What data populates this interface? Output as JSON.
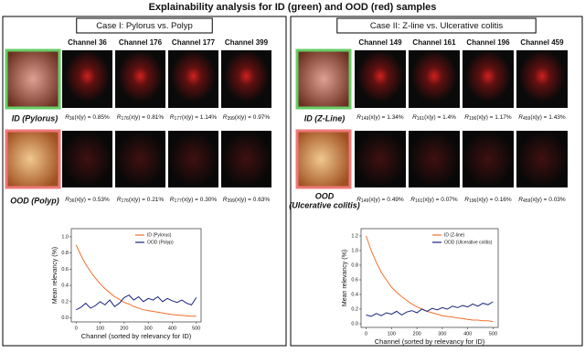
{
  "title": "Explainability analysis for ID (green) and OOD (red) samples",
  "panels": [
    {
      "case": "Case I: Pylorus vs. Polyp",
      "channels": [
        "Channel 36",
        "Channel 176",
        "Channel 177",
        "Channel 399"
      ],
      "rows": [
        {
          "label_lines": [
            "ID (Pylorus)"
          ],
          "captions": [
            {
              "symbol": "R",
              "sub": "36",
              "text": "(x|y) = 0.85%"
            },
            {
              "symbol": "R",
              "sub": "176",
              "text": "(x|y) = 0.81%"
            },
            {
              "symbol": "R",
              "sub": "177",
              "text": "(x|y) = 1.14%"
            },
            {
              "symbol": "R",
              "sub": "399",
              "text": "(x|y) = 0.97%"
            }
          ]
        },
        {
          "label_lines": [
            "OOD (Polyp)"
          ],
          "captions": [
            {
              "symbol": "R",
              "sub": "36",
              "text": "(x|y) = 0.53%"
            },
            {
              "symbol": "R",
              "sub": "176",
              "text": "(x|y) = 0.21%"
            },
            {
              "symbol": "R",
              "sub": "177",
              "text": "(x|y) = 0.30%"
            },
            {
              "symbol": "R",
              "sub": "399",
              "text": "(x|y) = 0.63%"
            }
          ]
        }
      ]
    },
    {
      "case": "Case II: Z-line vs. Ulcerative colitis",
      "channels": [
        "Channel 149",
        "Channel 161",
        "Channel 196",
        "Channel 459"
      ],
      "rows": [
        {
          "label_lines": [
            "ID (Z-Line)"
          ],
          "captions": [
            {
              "symbol": "R",
              "sub": "149",
              "text": "(x|y) = 1.34%"
            },
            {
              "symbol": "R",
              "sub": "161",
              "text": "(x|y) = 1.4%"
            },
            {
              "symbol": "R",
              "sub": "196",
              "text": "(x|y) = 1.17%"
            },
            {
              "symbol": "R",
              "sub": "459",
              "text": "(x|y) = 1.43%"
            }
          ]
        },
        {
          "label_lines": [
            "OOD",
            "(Ulcerative colitis)"
          ],
          "captions": [
            {
              "symbol": "R",
              "sub": "149",
              "text": "(x|y) = 0.49%"
            },
            {
              "symbol": "R",
              "sub": "161",
              "text": "(x|y) = 0.07%"
            },
            {
              "symbol": "R",
              "sub": "196",
              "text": "(x|y) = 0.16%"
            },
            {
              "symbol": "R",
              "sub": "459",
              "text": "(x|y) = 0.03%"
            }
          ]
        }
      ]
    }
  ],
  "chart_data": [
    {
      "type": "line",
      "xlabel": "Channel (sorted by relevancy for ID)",
      "ylabel": "Mean relevancy (%)",
      "x": [
        0,
        20,
        40,
        60,
        80,
        100,
        120,
        140,
        160,
        180,
        200,
        220,
        240,
        260,
        280,
        300,
        320,
        340,
        360,
        380,
        400,
        420,
        440,
        460,
        480,
        500
      ],
      "series": [
        {
          "name": "ID (Pylorus)",
          "color": "#f07030",
          "values": [
            0.9,
            0.77,
            0.66,
            0.57,
            0.49,
            0.42,
            0.36,
            0.31,
            0.26,
            0.23,
            0.19,
            0.17,
            0.14,
            0.12,
            0.1,
            0.09,
            0.08,
            0.07,
            0.06,
            0.05,
            0.04,
            0.035,
            0.03,
            0.025,
            0.02,
            0.02
          ]
        },
        {
          "name": "OOD (Polyp)",
          "color": "#1a237e",
          "values": [
            0.1,
            0.13,
            0.18,
            0.12,
            0.15,
            0.2,
            0.16,
            0.22,
            0.14,
            0.18,
            0.25,
            0.28,
            0.22,
            0.26,
            0.2,
            0.24,
            0.22,
            0.26,
            0.2,
            0.24,
            0.21,
            0.19,
            0.22,
            0.18,
            0.16,
            0.25
          ]
        }
      ],
      "xlim": [
        -20,
        520
      ],
      "xticks": [
        0,
        100,
        200,
        300,
        400,
        500
      ],
      "ylim": [
        -0.05,
        1.1
      ],
      "yticks": [
        {
          "value": 0,
          "label": "0.0"
        },
        0.2,
        0.4,
        0.6,
        0.8,
        {
          "value": 1,
          "label": "1.0"
        }
      ]
    },
    {
      "type": "line",
      "xlabel": "Channel (sorted by relevancy for ID)",
      "ylabel": "Mean relevancy (%)",
      "x": [
        0,
        20,
        40,
        60,
        80,
        100,
        120,
        140,
        160,
        180,
        200,
        220,
        240,
        260,
        280,
        300,
        320,
        340,
        360,
        380,
        400,
        420,
        440,
        460,
        480,
        500
      ],
      "series": [
        {
          "name": "ID (Z-line)",
          "color": "#f07030",
          "values": [
            1.2,
            1.0,
            0.84,
            0.7,
            0.6,
            0.5,
            0.43,
            0.37,
            0.32,
            0.27,
            0.23,
            0.2,
            0.17,
            0.15,
            0.13,
            0.11,
            0.1,
            0.09,
            0.08,
            0.07,
            0.06,
            0.05,
            0.05,
            0.04,
            0.04,
            0.03
          ]
        },
        {
          "name": "OOD (Ulcerative colitis)",
          "color": "#1a237e",
          "values": [
            0.12,
            0.1,
            0.14,
            0.11,
            0.15,
            0.13,
            0.17,
            0.12,
            0.16,
            0.18,
            0.15,
            0.2,
            0.17,
            0.21,
            0.19,
            0.22,
            0.2,
            0.24,
            0.22,
            0.25,
            0.23,
            0.27,
            0.24,
            0.28,
            0.26,
            0.3
          ]
        }
      ],
      "xlim": [
        -20,
        520
      ],
      "xticks": [
        0,
        100,
        200,
        300,
        400,
        500
      ],
      "ylim": [
        -0.05,
        1.3
      ],
      "yticks": [
        {
          "value": 0,
          "label": "0.0"
        },
        0.2,
        0.4,
        0.6,
        0.8,
        {
          "value": 1,
          "label": "1.0"
        },
        1.2
      ]
    }
  ]
}
